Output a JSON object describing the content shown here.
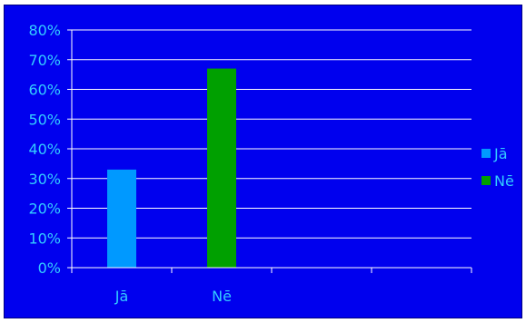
{
  "chart_data": {
    "type": "bar",
    "categories": [
      "Jā",
      "Nē"
    ],
    "series": [
      {
        "name": "Jā",
        "values": [
          33,
          null
        ],
        "color": "#0099ff"
      },
      {
        "name": "Nē",
        "values": [
          null,
          67
        ],
        "color": "#00a000"
      }
    ],
    "ylim": [
      0,
      80
    ],
    "yticks": [
      0,
      10,
      20,
      30,
      40,
      50,
      60,
      70,
      80
    ],
    "ytick_labels": [
      "0%",
      "10%",
      "20%",
      "30%",
      "40%",
      "50%",
      "60%",
      "70%",
      "80%"
    ],
    "x_slots": 4,
    "grid": true,
    "legend_position": "right",
    "background_color": "#0000ee",
    "text_color": "#33ccff",
    "gridline_color": "#ffffff"
  }
}
